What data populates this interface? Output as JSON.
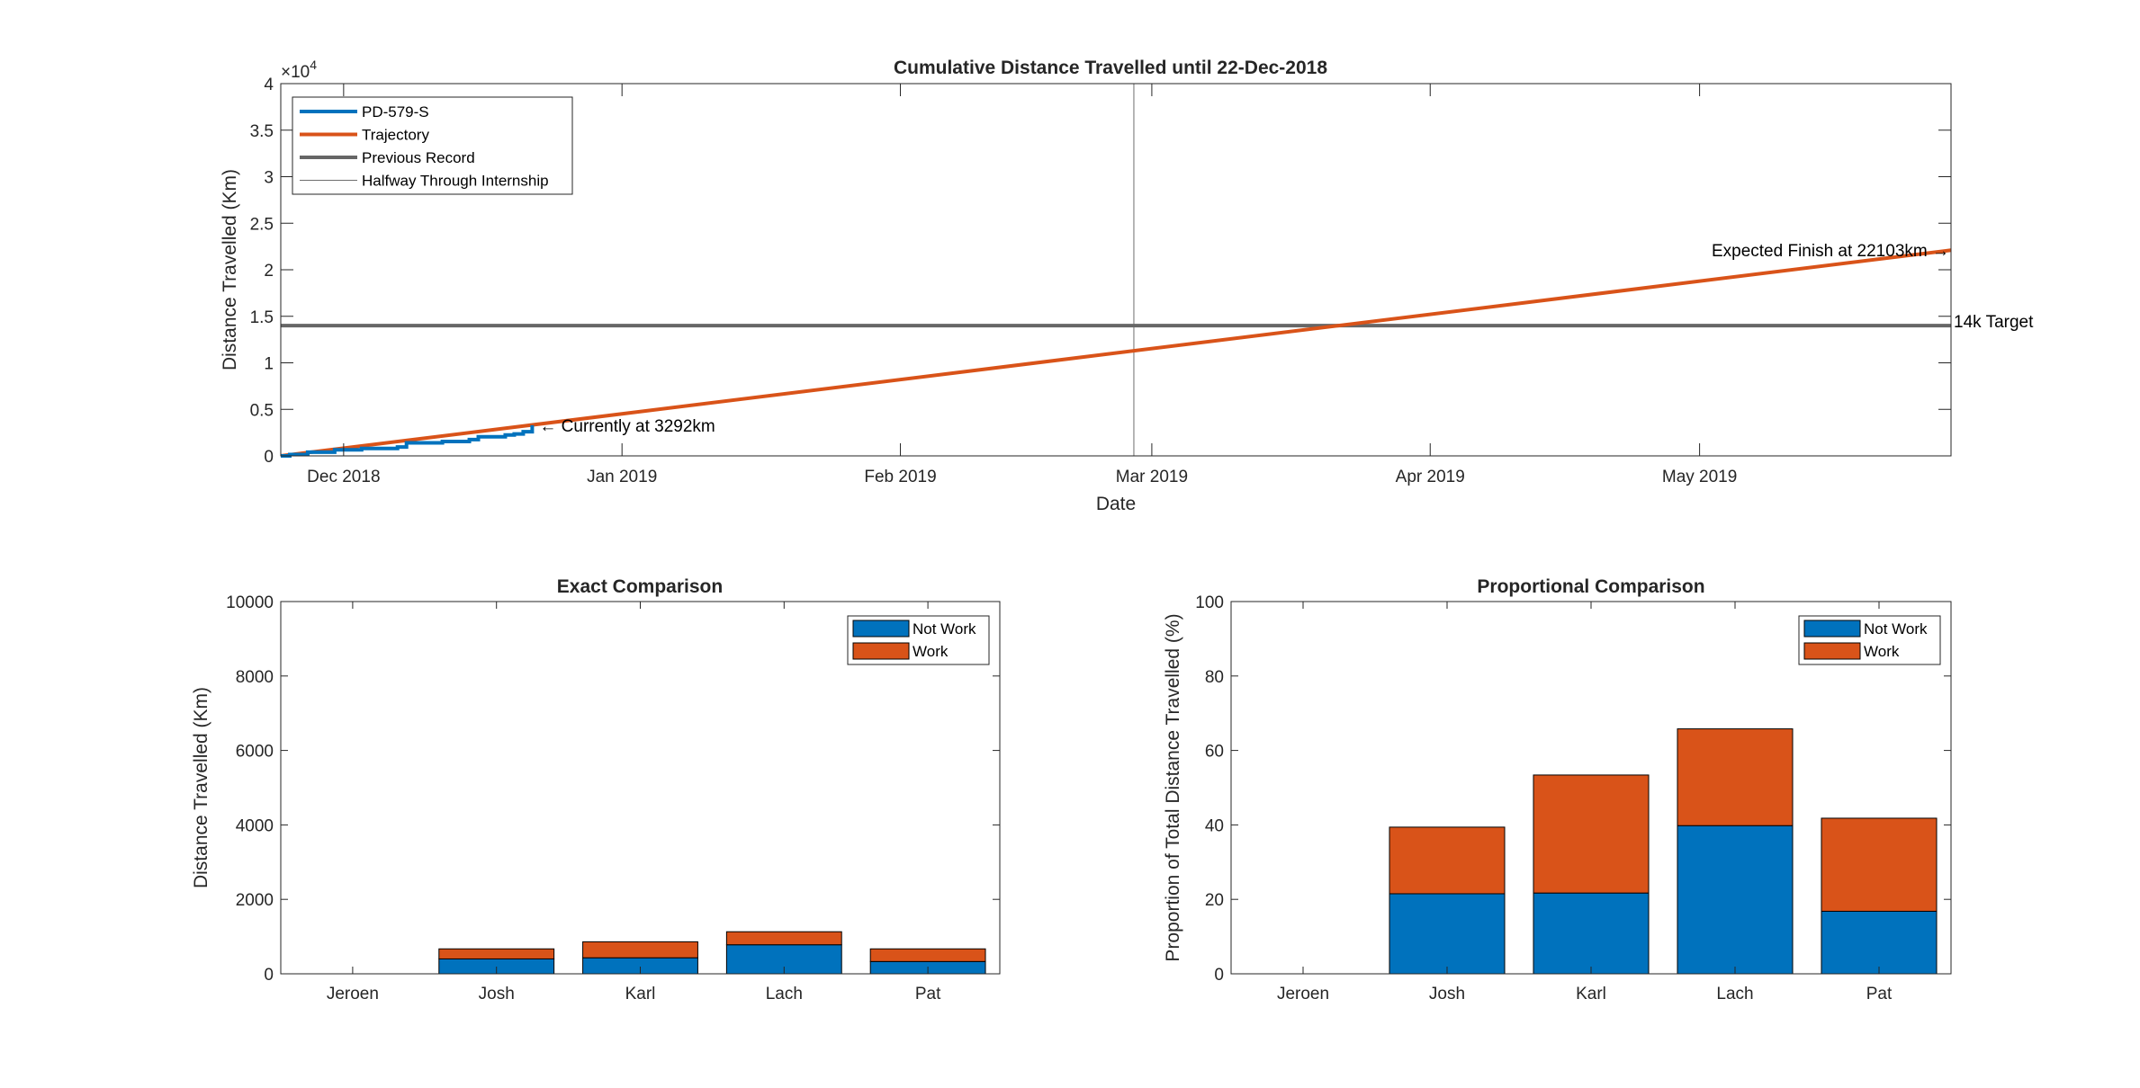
{
  "chart_data": [
    {
      "type": "line",
      "title": "Cumulative Distance Travelled until 22-Dec-2018",
      "xlabel": "Date",
      "ylabel": "Distance Travelled (Km)",
      "y_exponent_label": "×10^4",
      "y_exponent_base": "×10",
      "y_exponent_power": "4",
      "xlim": [
        "2018-11-24",
        "2019-05-29"
      ],
      "ylim": [
        0,
        40000
      ],
      "x_ticks": [
        {
          "date": "2018-12-01",
          "label": "Dec 2018"
        },
        {
          "date": "2019-01-01",
          "label": "Jan 2019"
        },
        {
          "date": "2019-02-01",
          "label": "Feb 2019"
        },
        {
          "date": "2019-03-01",
          "label": "Mar 2019"
        },
        {
          "date": "2019-04-01",
          "label": "Apr 2019"
        },
        {
          "date": "2019-05-01",
          "label": "May 2019"
        }
      ],
      "y_ticks": [
        {
          "value": 0,
          "label": "0"
        },
        {
          "value": 5000,
          "label": "0.5"
        },
        {
          "value": 10000,
          "label": "1"
        },
        {
          "value": 15000,
          "label": "1.5"
        },
        {
          "value": 20000,
          "label": "2"
        },
        {
          "value": 25000,
          "label": "2.5"
        },
        {
          "value": 30000,
          "label": "3"
        },
        {
          "value": 35000,
          "label": "3.5"
        },
        {
          "value": 40000,
          "label": "4"
        }
      ],
      "legend_position": "top-left",
      "grid": false,
      "series": [
        {
          "name": "PD-579-S",
          "color": "#0072BD",
          "points": [
            {
              "x": "2018-11-24",
              "y": 0
            },
            {
              "x": "2018-11-25",
              "y": 150
            },
            {
              "x": "2018-11-27",
              "y": 400
            },
            {
              "x": "2018-11-30",
              "y": 650
            },
            {
              "x": "2018-12-03",
              "y": 800
            },
            {
              "x": "2018-12-07",
              "y": 950
            },
            {
              "x": "2018-12-08",
              "y": 1400
            },
            {
              "x": "2018-12-12",
              "y": 1550
            },
            {
              "x": "2018-12-15",
              "y": 1750
            },
            {
              "x": "2018-12-16",
              "y": 2050
            },
            {
              "x": "2018-12-19",
              "y": 2250
            },
            {
              "x": "2018-12-20",
              "y": 2350
            },
            {
              "x": "2018-12-21",
              "y": 2600
            },
            {
              "x": "2018-12-22",
              "y": 3292
            }
          ]
        },
        {
          "name": "Trajectory",
          "color": "#D95319",
          "points": [
            {
              "x": "2018-11-24",
              "y": 0
            },
            {
              "x": "2019-05-29",
              "y": 22103
            }
          ]
        },
        {
          "name": "Previous Record",
          "color": "#666666",
          "points": [
            {
              "x": "2018-11-24",
              "y": 14000
            },
            {
              "x": "2019-05-29",
              "y": 14000
            }
          ]
        },
        {
          "name": "Halfway Through Internship",
          "color": "#6e6e6e",
          "vertical_line_date": "2019-02-27"
        }
      ],
      "annotations": [
        {
          "text": "← Currently at 3292km",
          "x": "2018-12-22",
          "y": 3292
        },
        {
          "text": "Expected Finish at 22103km →",
          "x": "2019-05-29",
          "y": 22103
        },
        {
          "text": "14k Target",
          "x": "2019-05-29",
          "y": 14000
        }
      ]
    },
    {
      "type": "bar",
      "stacked": true,
      "title": "Exact Comparison",
      "xlabel": "",
      "ylabel": "Distance Travelled (Km)",
      "ylim": [
        0,
        10000
      ],
      "y_ticks": [
        0,
        2000,
        4000,
        6000,
        8000,
        10000
      ],
      "categories": [
        "Jeroen",
        "Josh",
        "Karl",
        "Lach",
        "Pat"
      ],
      "legend_position": "top-right",
      "series": [
        {
          "name": "Not Work",
          "color": "#0072BD",
          "values": [
            0,
            400,
            430,
            780,
            330
          ]
        },
        {
          "name": "Work",
          "color": "#D95319",
          "values": [
            0,
            270,
            430,
            350,
            340
          ]
        }
      ]
    },
    {
      "type": "bar",
      "stacked": true,
      "title": "Proportional Comparison",
      "xlabel": "",
      "ylabel": "Proportion of Total Distance Travelled (%)",
      "ylim": [
        0,
        100
      ],
      "y_ticks": [
        0,
        20,
        40,
        60,
        80,
        100
      ],
      "categories": [
        "Jeroen",
        "Josh",
        "Karl",
        "Lach",
        "Pat"
      ],
      "legend_position": "top-right",
      "series": [
        {
          "name": "Not Work",
          "color": "#0072BD",
          "values": [
            0,
            21.5,
            21.7,
            39.8,
            16.8
          ]
        },
        {
          "name": "Work",
          "color": "#D95319",
          "values": [
            0,
            17.9,
            31.7,
            26.0,
            25.0
          ]
        }
      ]
    }
  ]
}
